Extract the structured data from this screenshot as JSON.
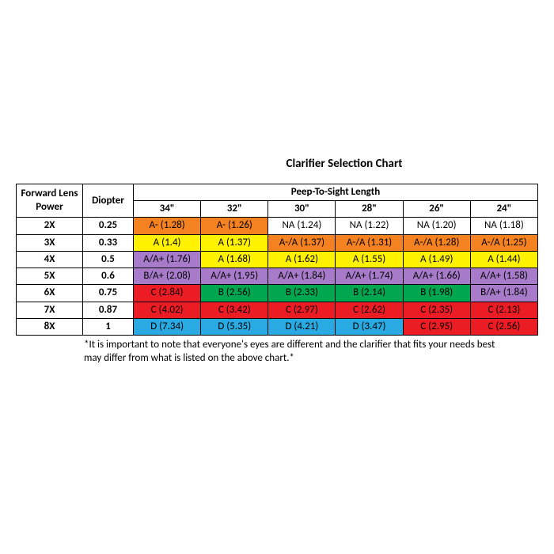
{
  "title": "Clarifier Selection Chart",
  "headers": {
    "lens_power": "Forward Lens Power",
    "diopter": "Diopter",
    "peep_group": "Peep-To-Sight Length",
    "lengths": [
      "34\"",
      "32\"",
      "30\"",
      "28\"",
      "26\"",
      "24\""
    ]
  },
  "colors": {
    "white": "#ffffff",
    "orange": "#f58220",
    "yellow": "#fef200",
    "purple": "#a77bca",
    "green": "#00a650",
    "red": "#ec1c24",
    "blue": "#29aae2"
  },
  "rows": [
    {
      "power": "2X",
      "diopter": "0.25",
      "cells": [
        {
          "v": "A- (1.28)",
          "c": "orange"
        },
        {
          "v": "A- (1.26)",
          "c": "orange"
        },
        {
          "v": "NA (1.24)",
          "c": "white"
        },
        {
          "v": "NA (1.22)",
          "c": "white"
        },
        {
          "v": "NA (1.20)",
          "c": "white"
        },
        {
          "v": "NA (1.18)",
          "c": "white"
        }
      ]
    },
    {
      "power": "3X",
      "diopter": "0.33",
      "cells": [
        {
          "v": "A (1.4)",
          "c": "yellow"
        },
        {
          "v": "A (1.37)",
          "c": "yellow"
        },
        {
          "v": "A-/A (1.37)",
          "c": "orange"
        },
        {
          "v": "A-/A (1.31)",
          "c": "orange"
        },
        {
          "v": "A-/A (1.28)",
          "c": "orange"
        },
        {
          "v": "A-/A (1.25)",
          "c": "orange"
        }
      ]
    },
    {
      "power": "4X",
      "diopter": "0.5",
      "cells": [
        {
          "v": "A/A+ (1.76)",
          "c": "purple"
        },
        {
          "v": "A (1.68)",
          "c": "yellow"
        },
        {
          "v": "A (1.62)",
          "c": "yellow"
        },
        {
          "v": "A (1.55)",
          "c": "yellow"
        },
        {
          "v": "A (1.49)",
          "c": "yellow"
        },
        {
          "v": "A (1.44)",
          "c": "yellow"
        }
      ]
    },
    {
      "power": "5X",
      "diopter": "0.6",
      "cells": [
        {
          "v": "B/A+ (2.08)",
          "c": "purple"
        },
        {
          "v": "A/A+ (1.95)",
          "c": "purple"
        },
        {
          "v": "A/A+ (1.84)",
          "c": "purple"
        },
        {
          "v": "A/A+ (1.74)",
          "c": "purple"
        },
        {
          "v": "A/A+ (1.66)",
          "c": "purple"
        },
        {
          "v": "A/A+ (1.58)",
          "c": "purple"
        }
      ]
    },
    {
      "power": "6X",
      "diopter": "0.75",
      "cells": [
        {
          "v": "C (2.84)",
          "c": "red"
        },
        {
          "v": "B (2.56)",
          "c": "green"
        },
        {
          "v": "B (2.33)",
          "c": "green"
        },
        {
          "v": "B (2.14)",
          "c": "green"
        },
        {
          "v": "B (1.98)",
          "c": "green"
        },
        {
          "v": "B/A+ (1.84)",
          "c": "purple"
        }
      ]
    },
    {
      "power": "7X",
      "diopter": "0.87",
      "cells": [
        {
          "v": "C (4.02)",
          "c": "red"
        },
        {
          "v": "C (3.42)",
          "c": "red"
        },
        {
          "v": "C (2.97)",
          "c": "red"
        },
        {
          "v": "C (2.62)",
          "c": "red"
        },
        {
          "v": "C (2.35)",
          "c": "red"
        },
        {
          "v": "C (2.13)",
          "c": "red"
        }
      ]
    },
    {
      "power": "8X",
      "diopter": "1",
      "cells": [
        {
          "v": "D (7.34)",
          "c": "blue"
        },
        {
          "v": "D (5.35)",
          "c": "blue"
        },
        {
          "v": "D (4.21)",
          "c": "blue"
        },
        {
          "v": "D (3.47)",
          "c": "blue"
        },
        {
          "v": "C (2.95)",
          "c": "red"
        },
        {
          "v": "C (2.56)",
          "c": "red"
        }
      ]
    }
  ],
  "footnote": "*It is important to note that everyone's eyes are different and the clarifier that fits your needs best may differ from what is listed on the above chart.*"
}
